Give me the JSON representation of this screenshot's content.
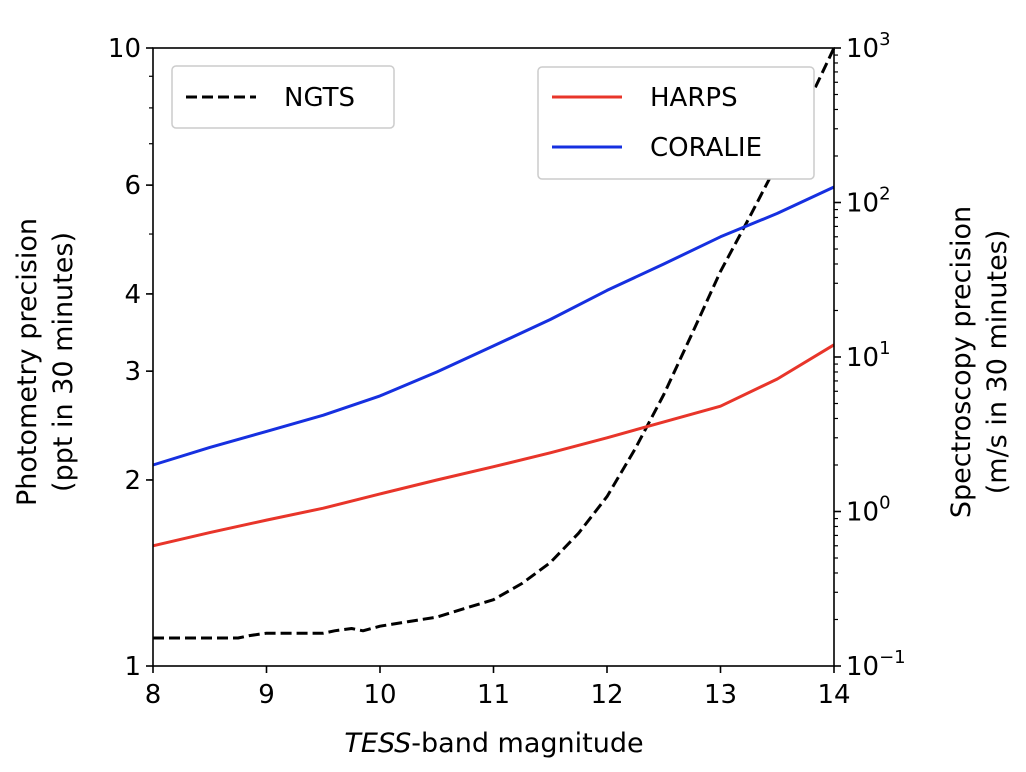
{
  "chart_data": {
    "type": "line",
    "x": [
      8,
      8.5,
      9,
      9.5,
      10,
      10.5,
      11,
      11.5,
      12,
      12.5,
      13,
      13.5,
      14
    ],
    "xlabel_italic": "TESS",
    "xlabel_rest": "-band magnitude",
    "xlim": [
      8,
      14
    ],
    "xticks": [
      "8",
      "9",
      "10",
      "11",
      "12",
      "13",
      "14"
    ],
    "xtick_values": [
      8,
      9,
      10,
      11,
      12,
      13,
      14
    ],
    "ylabel_left": [
      "Photometry precision",
      "(ppt in 30 minutes)"
    ],
    "ylim_left": [
      1,
      10
    ],
    "yscale_left": "log",
    "yticks_left": [
      "1",
      "2",
      "3",
      "4",
      "6",
      "10"
    ],
    "ytick_values_left": [
      1,
      2,
      3,
      4,
      6,
      10
    ],
    "ylabel_right": [
      "Spectroscopy precision",
      "(m/s in 30 minutes)"
    ],
    "ylim_right": [
      0.1,
      1000
    ],
    "yscale_right": "log",
    "yticks_right": [
      {
        "base": "10",
        "exp": "−1",
        "value": 0.1
      },
      {
        "base": "10",
        "exp": "0",
        "value": 1
      },
      {
        "base": "10",
        "exp": "1",
        "value": 10
      },
      {
        "base": "10",
        "exp": "2",
        "value": 100
      },
      {
        "base": "10",
        "exp": "3",
        "value": 1000
      }
    ],
    "series": [
      {
        "name": "NGTS",
        "axis": "left",
        "color": "#000000",
        "dash": "dashed",
        "x": [
          8,
          8.25,
          8.5,
          8.75,
          8.85,
          9,
          9.25,
          9.5,
          9.6,
          9.75,
          9.85,
          10,
          10.25,
          10.5,
          10.75,
          11,
          11.25,
          11.5,
          11.75,
          12,
          12.25,
          12.5,
          12.75,
          13,
          13.25,
          13.5,
          13.75,
          14
        ],
        "values": [
          1.11,
          1.11,
          1.11,
          1.11,
          1.12,
          1.13,
          1.13,
          1.13,
          1.14,
          1.15,
          1.14,
          1.16,
          1.18,
          1.2,
          1.24,
          1.28,
          1.36,
          1.47,
          1.64,
          1.88,
          2.25,
          2.75,
          3.45,
          4.35,
          5.3,
          6.5,
          8.0,
          10.0
        ]
      },
      {
        "name": "HARPS",
        "axis": "right",
        "color": "#e8352a",
        "dash": "solid",
        "x": [
          8,
          8.5,
          9,
          9.5,
          10,
          10.5,
          11,
          11.5,
          12,
          12.5,
          13,
          13.5,
          14
        ],
        "values": [
          0.6,
          0.73,
          0.88,
          1.05,
          1.3,
          1.6,
          1.95,
          2.4,
          3.0,
          3.8,
          4.8,
          7.2,
          12.0
        ]
      },
      {
        "name": "CORALIE",
        "axis": "right",
        "color": "#1630e0",
        "dash": "solid",
        "x": [
          8,
          8.5,
          9,
          9.5,
          10,
          10.5,
          11,
          11.5,
          12,
          12.5,
          13,
          13.5,
          14
        ],
        "values": [
          2.0,
          2.6,
          3.3,
          4.2,
          5.6,
          8.0,
          11.8,
          17.5,
          27.0,
          40.0,
          60.0,
          85.0,
          126.0
        ]
      }
    ],
    "legend_left": {
      "placement": "top-left",
      "entries": [
        "NGTS"
      ]
    },
    "legend_right": {
      "placement": "top-right",
      "entries": [
        "HARPS",
        "CORALIE"
      ]
    },
    "grid": false
  }
}
